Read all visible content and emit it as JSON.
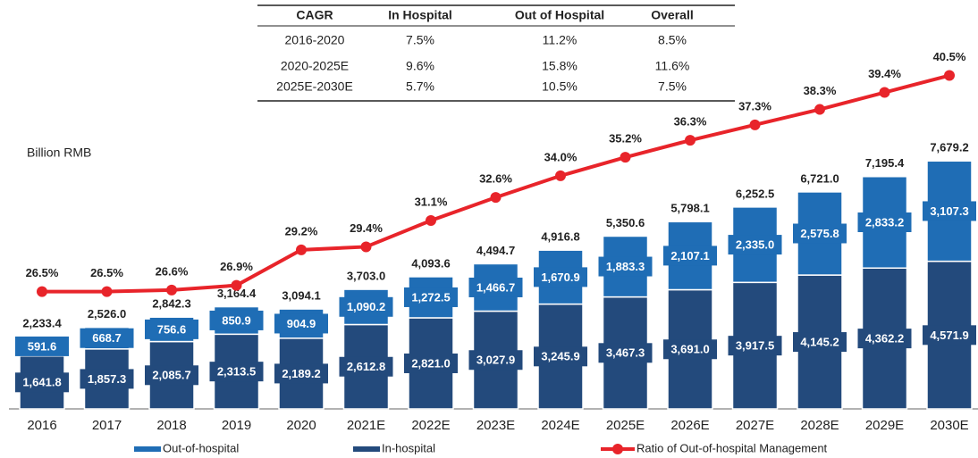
{
  "table": {
    "header": [
      "CAGR",
      "In Hospital",
      "Out of Hospital",
      "Overall"
    ],
    "rows": [
      [
        "2016-2020",
        "7.5%",
        "11.2%",
        "8.5%"
      ],
      [
        "2020-2025E",
        "9.6%",
        "15.8%",
        "11.6%"
      ],
      [
        "2025E-2030E",
        "5.7%",
        "10.5%",
        "7.5%"
      ]
    ]
  },
  "chart_data": {
    "type": "bar",
    "stacked": true,
    "y_label": "Billion RMB",
    "categories": [
      "2016",
      "2017",
      "2018",
      "2019",
      "2020",
      "2021E",
      "2022E",
      "2023E",
      "2024E",
      "2025E",
      "2026E",
      "2027E",
      "2028E",
      "2029E",
      "2030E"
    ],
    "ylim": [
      0,
      12000
    ],
    "y2lim": [
      18.9,
      44.0
    ],
    "series": [
      {
        "name": "In-hospital",
        "color": "#234a7c",
        "values": [
          1641.8,
          1857.3,
          2085.7,
          2313.5,
          2189.2,
          2612.8,
          2821.0,
          3027.9,
          3245.9,
          3467.3,
          3691.0,
          3917.5,
          4145.2,
          4362.2,
          4571.9
        ],
        "value_labels": [
          "1,641.8",
          "1,857.3",
          "2,085.7",
          "2,313.5",
          "2,189.2",
          "2,612.8",
          "2,821.0",
          "3,027.9",
          "3,245.9",
          "3,467.3",
          "3,691.0",
          "3,917.5",
          "4,145.2",
          "4,362.2",
          "4,571.9"
        ]
      },
      {
        "name": "Out-of-hospital",
        "color": "#1f6db5",
        "values": [
          591.6,
          668.7,
          756.6,
          850.9,
          904.9,
          1090.2,
          1272.5,
          1466.7,
          1670.9,
          1883.3,
          2107.1,
          2335.0,
          2575.8,
          2833.2,
          3107.3
        ],
        "value_labels": [
          "591.6",
          "668.7",
          "756.6",
          "850.9",
          "904.9",
          "1,090.2",
          "1,272.5",
          "1,466.7",
          "1,670.9",
          "1,883.3",
          "2,107.1",
          "2,335.0",
          "2,575.8",
          "2,833.2",
          "3,107.3"
        ]
      },
      {
        "name": "Ratio of Out-of-hospital Management",
        "type": "line",
        "axis": "y2",
        "color": "#e8242a",
        "values": [
          26.5,
          26.5,
          26.6,
          26.9,
          29.2,
          29.4,
          31.1,
          32.6,
          34.0,
          35.2,
          36.3,
          37.3,
          38.3,
          39.4,
          40.5
        ],
        "value_labels": [
          "26.5%",
          "26.5%",
          "26.6%",
          "26.9%",
          "29.2%",
          "29.4%",
          "31.1%",
          "32.6%",
          "34.0%",
          "35.2%",
          "36.3%",
          "37.3%",
          "38.3%",
          "39.4%",
          "40.5%"
        ]
      }
    ],
    "totals": {
      "values": [
        2233.4,
        2526.0,
        2842.3,
        3164.4,
        3094.1,
        3703.0,
        4093.6,
        4494.7,
        4916.8,
        5350.6,
        5798.1,
        6252.5,
        6721.0,
        7195.4,
        7679.2
      ],
      "value_labels": [
        "2,233.4",
        "2,526.0",
        "2,842.3",
        "3,164.4",
        "3,094.1",
        "3,703.0",
        "4,093.6",
        "4,494.7",
        "4,916.8",
        "5,350.6",
        "5,798.1",
        "6,252.5",
        "6,721.0",
        "7,195.4",
        "7,679.2"
      ]
    }
  }
}
